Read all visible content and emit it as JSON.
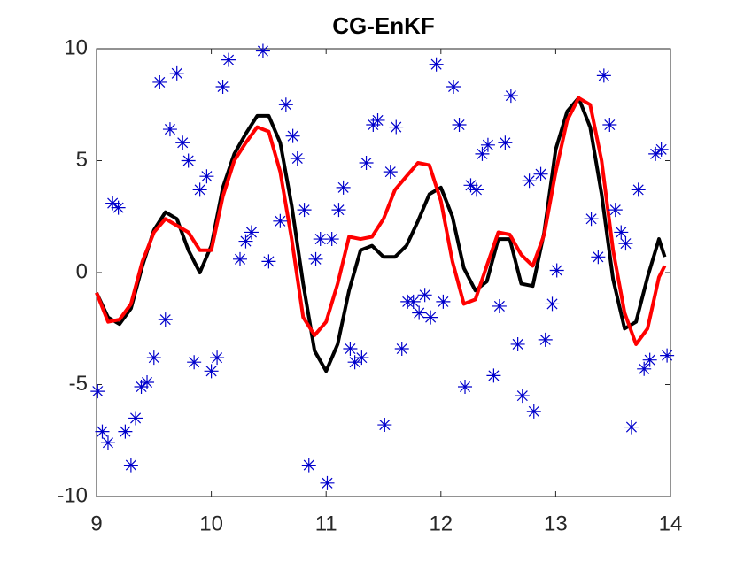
{
  "chart_data": {
    "type": "line",
    "title": "CG-EnKF",
    "x": [
      9.0,
      9.1,
      9.2,
      9.3,
      9.4,
      9.5,
      9.6,
      9.7,
      9.8,
      9.9,
      10.0,
      10.1,
      10.2,
      10.3,
      10.4,
      10.5,
      10.6,
      10.7,
      10.8,
      10.9,
      11.0,
      11.1,
      11.2,
      11.3,
      11.4,
      11.5,
      11.6,
      11.7,
      11.8,
      11.9,
      12.0,
      12.1,
      12.2,
      12.3,
      12.4,
      12.5,
      12.6,
      12.7,
      12.8,
      12.9,
      13.0,
      13.1,
      13.2,
      13.3,
      13.4,
      13.5,
      13.6,
      13.7,
      13.8,
      13.9,
      13.95
    ],
    "series": [
      {
        "color": "#000000",
        "values": [
          -0.9,
          -2.0,
          -2.3,
          -1.6,
          0.3,
          1.9,
          2.7,
          2.4,
          1.0,
          0.0,
          1.2,
          3.8,
          5.3,
          6.2,
          7.0,
          7.0,
          5.8,
          3.0,
          -0.5,
          -3.5,
          -4.4,
          -3.2,
          -0.8,
          1.0,
          1.2,
          0.7,
          0.7,
          1.2,
          2.3,
          3.5,
          3.8,
          2.5,
          0.2,
          -0.8,
          -0.4,
          1.5,
          1.5,
          -0.5,
          -0.6,
          1.8,
          5.5,
          7.2,
          7.8,
          6.5,
          3.5,
          -0.3,
          -2.5,
          -2.2,
          -0.2,
          1.5,
          0.7
        ]
      },
      {
        "color": "#ff0000",
        "values": [
          -0.9,
          -2.2,
          -2.1,
          -1.4,
          0.5,
          1.8,
          2.4,
          2.1,
          1.8,
          1.0,
          1.0,
          3.4,
          5.0,
          5.8,
          6.5,
          6.3,
          4.5,
          1.5,
          -2.0,
          -2.8,
          -2.2,
          -0.5,
          1.6,
          1.5,
          1.6,
          2.4,
          3.7,
          4.3,
          4.9,
          4.8,
          3.2,
          0.5,
          -1.4,
          -1.2,
          0.3,
          1.8,
          1.7,
          0.8,
          0.3,
          1.7,
          4.5,
          6.8,
          7.8,
          7.5,
          5.0,
          1.0,
          -1.8,
          -3.2,
          -2.5,
          -0.2,
          0.3
        ]
      },
      {
        "type": "scatter",
        "color": "#0000cc",
        "x": [
          9.01,
          9.05,
          9.1,
          9.14,
          9.19,
          9.25,
          9.3,
          9.34,
          9.39,
          9.44,
          9.5,
          9.55,
          9.7,
          9.6,
          9.64,
          9.75,
          9.8,
          9.85,
          9.9,
          9.96,
          10.0,
          10.05,
          10.1,
          10.15,
          10.25,
          10.3,
          10.35,
          10.45,
          10.5,
          10.6,
          10.65,
          10.71,
          10.75,
          10.81,
          10.85,
          10.91,
          10.95,
          11.01,
          11.05,
          11.11,
          11.15,
          11.21,
          11.25,
          11.31,
          11.35,
          11.41,
          11.45,
          11.51,
          11.56,
          11.61,
          11.66,
          11.71,
          11.76,
          11.81,
          11.86,
          11.91,
          11.96,
          12.02,
          12.11,
          12.16,
          12.21,
          12.26,
          12.31,
          12.36,
          12.41,
          12.46,
          12.51,
          12.56,
          12.61,
          12.67,
          12.71,
          12.77,
          12.81,
          12.87,
          12.91,
          12.97,
          13.01,
          13.31,
          13.37,
          13.42,
          13.47,
          13.52,
          13.57,
          13.61,
          13.66,
          13.72,
          13.77,
          13.82,
          13.87,
          13.92,
          13.97
        ],
        "values": [
          -5.3,
          -7.1,
          -7.6,
          3.1,
          2.9,
          -7.1,
          -8.6,
          -6.5,
          -5.1,
          -4.9,
          -3.8,
          8.5,
          8.9,
          -2.1,
          6.4,
          5.8,
          5.0,
          -4.0,
          3.7,
          4.3,
          -4.4,
          -3.8,
          8.3,
          9.5,
          0.6,
          1.4,
          1.8,
          9.9,
          0.5,
          2.3,
          7.5,
          6.1,
          5.1,
          2.8,
          -8.6,
          0.6,
          1.5,
          -9.4,
          1.5,
          2.8,
          3.8,
          -3.4,
          -4.0,
          -3.8,
          4.9,
          6.6,
          6.8,
          -6.8,
          4.5,
          6.5,
          -3.4,
          -1.3,
          -1.3,
          -1.8,
          -1.0,
          -2.0,
          9.3,
          -1.3,
          8.3,
          6.6,
          -5.1,
          3.9,
          3.7,
          5.3,
          5.7,
          -4.6,
          -1.5,
          5.8,
          7.9,
          -3.2,
          -5.5,
          4.1,
          -6.2,
          4.4,
          -3.0,
          -1.4,
          0.1,
          2.4,
          0.7,
          8.8,
          6.6,
          2.8,
          1.8,
          1.3,
          -6.9,
          3.7,
          -4.3,
          -3.9,
          5.3,
          5.5,
          -3.7
        ]
      }
    ],
    "xlim": [
      9,
      14
    ],
    "ylim": [
      -10,
      10
    ],
    "xticks": [
      9,
      10,
      11,
      12,
      13,
      14
    ],
    "yticks": [
      -10,
      -5,
      0,
      5,
      10
    ]
  }
}
